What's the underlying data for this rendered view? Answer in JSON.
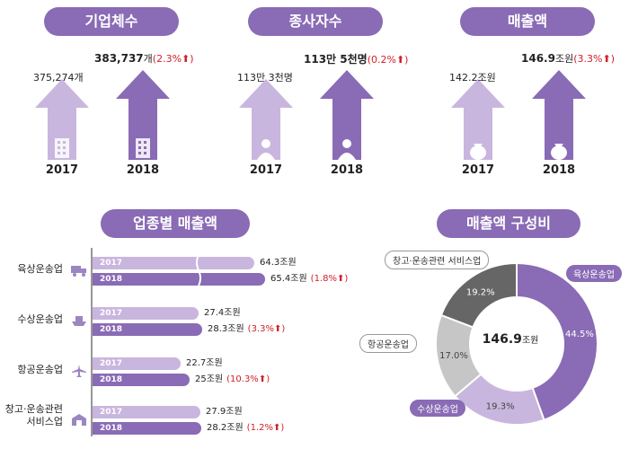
{
  "summary": {
    "panels": [
      {
        "title": "기업체수",
        "y2017": "2017",
        "y2018": "2018",
        "v2017": "375,274개",
        "v2018_num": "383,737",
        "v2018_unit": "개",
        "v2018_change": "(2.3%",
        "up_glyph": "⬆",
        "icon": "building-icon"
      },
      {
        "title": "종사자수",
        "y2017": "2017",
        "y2018": "2018",
        "v2017": "113만 3천명",
        "v2018_num": "113만 5천명",
        "v2018_unit": "",
        "v2018_change": "(0.2%",
        "up_glyph": "⬆",
        "icon": "person-icon"
      },
      {
        "title": "매출액",
        "y2017": "2017",
        "y2018": "2018",
        "v2017": "142.2조원",
        "v2018_num": "146.9",
        "v2018_unit": "조원",
        "v2018_change": "(3.3%",
        "up_glyph": "⬆",
        "icon": "money-bag-icon"
      }
    ]
  },
  "chart_data": [
    {
      "type": "bar",
      "title": "업종별 매출액",
      "orientation": "horizontal",
      "categories": [
        "육상운송업",
        "수상운송업",
        "항공운송업",
        "창고·운송관련 서비스업"
      ],
      "series": [
        {
          "name": "2017",
          "values": [
            64.3,
            27.4,
            22.7,
            27.9
          ]
        },
        {
          "name": "2018",
          "values": [
            65.4,
            28.3,
            25.0,
            28.2
          ]
        }
      ],
      "unit": "조원",
      "changes": [
        "(1.8%",
        "(3.3%",
        "(10.3%",
        "(1.2%"
      ],
      "up_glyph": "⬆",
      "axis_break": "육상운송업 bars truncated",
      "colors": {
        "2017": "#c9b6de",
        "2018": "#8a6bb5"
      }
    },
    {
      "type": "pie",
      "title": "매출액 구성비",
      "center_value": "146.9",
      "center_unit": "조원",
      "labels": [
        "육상운송업",
        "수상운송업",
        "항공운송업",
        "창고·운송관련 서비스업"
      ],
      "values": [
        44.5,
        19.3,
        17.0,
        19.2
      ],
      "value_labels": [
        "44.5%",
        "19.3%",
        "17.0%",
        "19.2%"
      ],
      "colors": [
        "#8a6bb5",
        "#c9b6de",
        "#c6c6c6",
        "#666666"
      ]
    }
  ],
  "colors": {
    "accent": "#8a6bb5",
    "light": "#c9b6de",
    "red": "#d0202a"
  }
}
